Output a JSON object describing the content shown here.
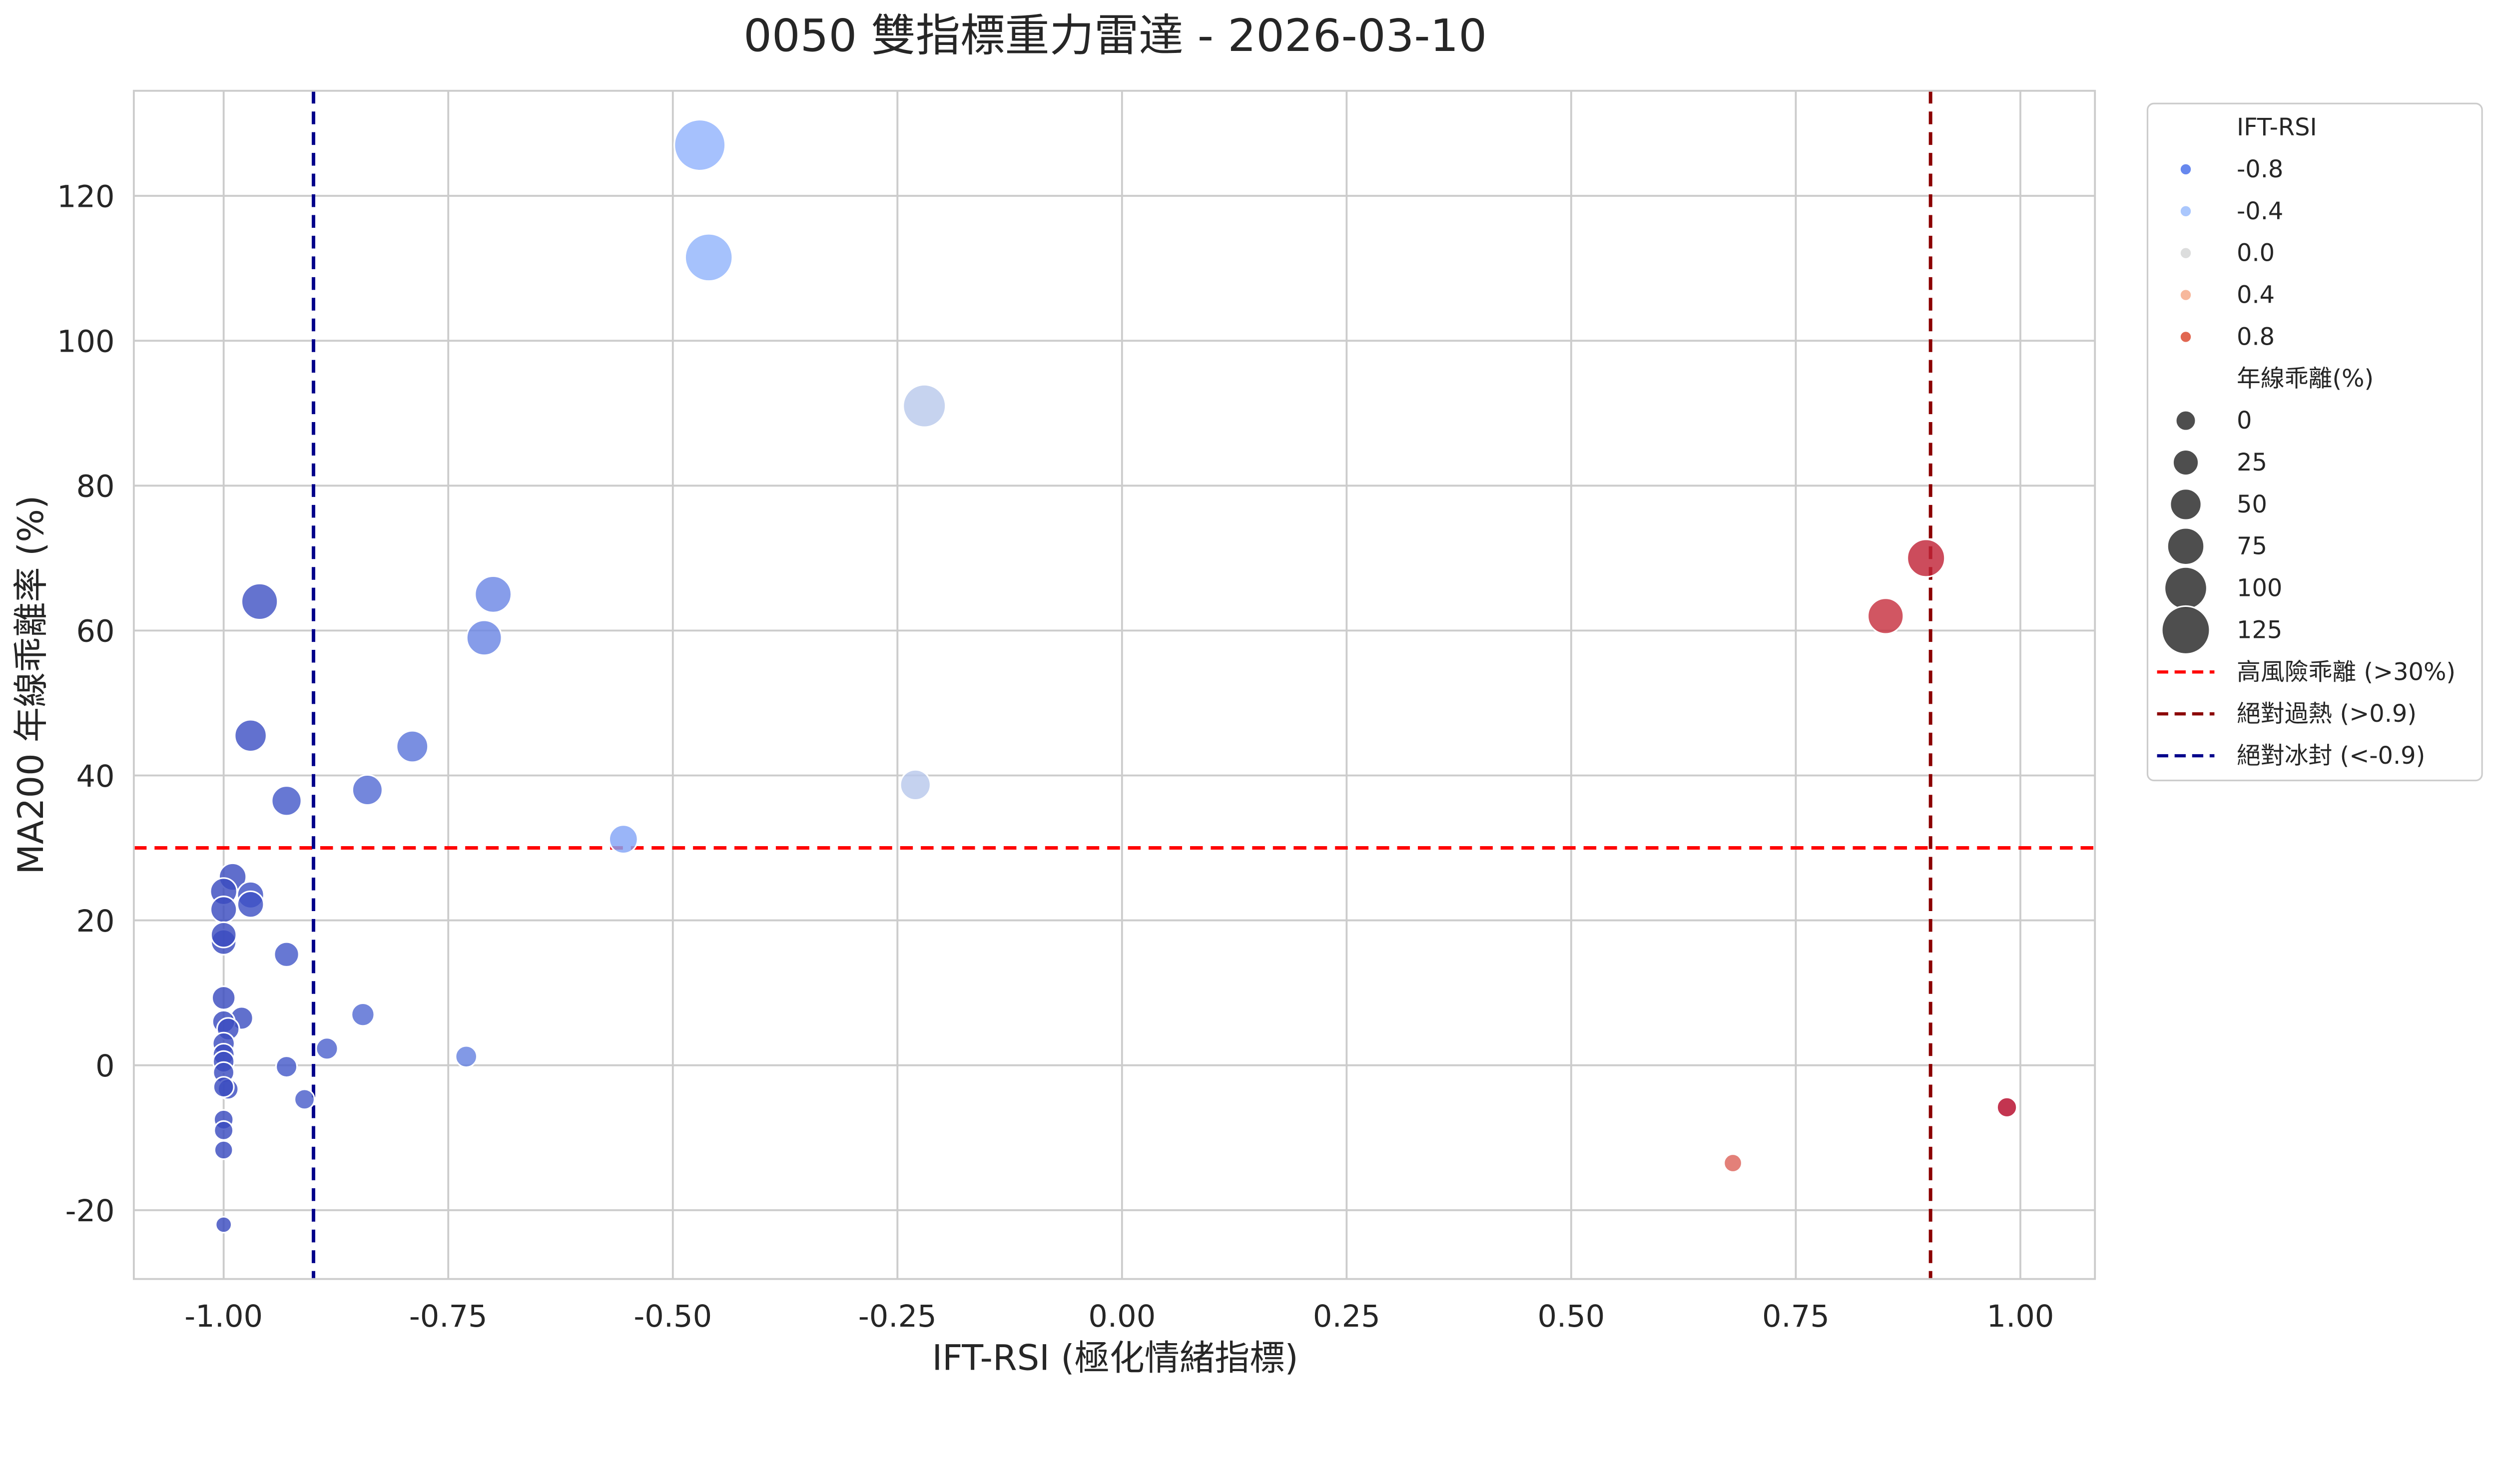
{
  "chart_data": {
    "type": "scatter",
    "title": "0050 雙指標重力雷達 - 2026-03-10",
    "xlabel": "IFT-RSI (極化情緒指標)",
    "ylabel": "MA200 年線乖離率 (%)",
    "xlim": [
      -1.1,
      1.083
    ],
    "ylim": [
      -29.5,
      134.5
    ],
    "xticks": [
      "-1.00",
      "-0.75",
      "-0.50",
      "-0.25",
      "0.00",
      "0.25",
      "0.50",
      "0.75",
      "1.00"
    ],
    "xtick_values": [
      -1,
      -0.75,
      -0.5,
      -0.25,
      0,
      0.25,
      0.5,
      0.75,
      1
    ],
    "yticks": [
      "-20",
      "0",
      "20",
      "40",
      "60",
      "80",
      "100",
      "120"
    ],
    "ytick_values": [
      -20,
      0,
      20,
      40,
      60,
      80,
      100,
      120
    ],
    "grid": true,
    "colormap": "coolwarm",
    "hue_range": [
      -1,
      1
    ],
    "points": [
      {
        "x": -0.47,
        "y": 127
      },
      {
        "x": -0.46,
        "y": 111.5
      },
      {
        "x": -0.22,
        "y": 91
      },
      {
        "x": 0.895,
        "y": 70
      },
      {
        "x": 0.85,
        "y": 62
      },
      {
        "x": -0.96,
        "y": 64
      },
      {
        "x": -0.7,
        "y": 65
      },
      {
        "x": -0.71,
        "y": 59
      },
      {
        "x": -0.97,
        "y": 45.5
      },
      {
        "x": -0.79,
        "y": 44
      },
      {
        "x": -0.93,
        "y": 36.5
      },
      {
        "x": -0.84,
        "y": 38
      },
      {
        "x": -0.23,
        "y": 38.7
      },
      {
        "x": -0.555,
        "y": 31.2
      },
      {
        "x": -0.99,
        "y": 26
      },
      {
        "x": -0.97,
        "y": 23.5
      },
      {
        "x": -1.0,
        "y": 24
      },
      {
        "x": -0.97,
        "y": 22.2
      },
      {
        "x": -1.0,
        "y": 21.5
      },
      {
        "x": -1.0,
        "y": 17
      },
      {
        "x": -1.0,
        "y": 18
      },
      {
        "x": -0.93,
        "y": 15.3
      },
      {
        "x": -1.0,
        "y": 9.3
      },
      {
        "x": -0.98,
        "y": 6.5
      },
      {
        "x": -1.0,
        "y": 6
      },
      {
        "x": -0.995,
        "y": 5
      },
      {
        "x": -1.0,
        "y": 3
      },
      {
        "x": -1.0,
        "y": 1.5
      },
      {
        "x": -1.0,
        "y": 0.5
      },
      {
        "x": -1.0,
        "y": -1
      },
      {
        "x": -0.995,
        "y": -3.3
      },
      {
        "x": -1.0,
        "y": -3
      },
      {
        "x": -0.93,
        "y": -0.2
      },
      {
        "x": -0.885,
        "y": 2.3
      },
      {
        "x": -0.845,
        "y": 7
      },
      {
        "x": -0.73,
        "y": 1.2
      },
      {
        "x": -0.91,
        "y": -4.7
      },
      {
        "x": -1.0,
        "y": -7.5
      },
      {
        "x": -1.0,
        "y": -9
      },
      {
        "x": -1.0,
        "y": -11.7
      },
      {
        "x": -1.0,
        "y": -22
      },
      {
        "x": 0.68,
        "y": -13.5
      },
      {
        "x": 0.985,
        "y": -5.8
      }
    ],
    "reference_lines": [
      {
        "orientation": "horizontal",
        "value": 30,
        "color": "#ff0000",
        "label": "高風險乖離 (>30%)"
      },
      {
        "orientation": "vertical",
        "value": 0.9,
        "color": "#8b0000",
        "label": "絕對過熱 (>0.9)"
      },
      {
        "orientation": "vertical",
        "value": -0.9,
        "color": "#00008b",
        "label": "絕對冰封 (<-0.9)"
      }
    ],
    "legend": {
      "placement": "outside-right",
      "hue_title": "IFT-RSI",
      "hue_entries": [
        {
          "label": "-0.8",
          "color": "#6788ee"
        },
        {
          "label": "-0.4",
          "color": "#aac7fd"
        },
        {
          "label": "0.0",
          "color": "#dcdddd"
        },
        {
          "label": "0.4",
          "color": "#f7b89c"
        },
        {
          "label": "0.8",
          "color": "#e16751"
        }
      ],
      "size_title": "年線乖離(%)",
      "size_entries": [
        "0",
        "25",
        "50",
        "75",
        "100",
        "125"
      ],
      "size_values": [
        0,
        25,
        50,
        75,
        100,
        125
      ]
    }
  }
}
